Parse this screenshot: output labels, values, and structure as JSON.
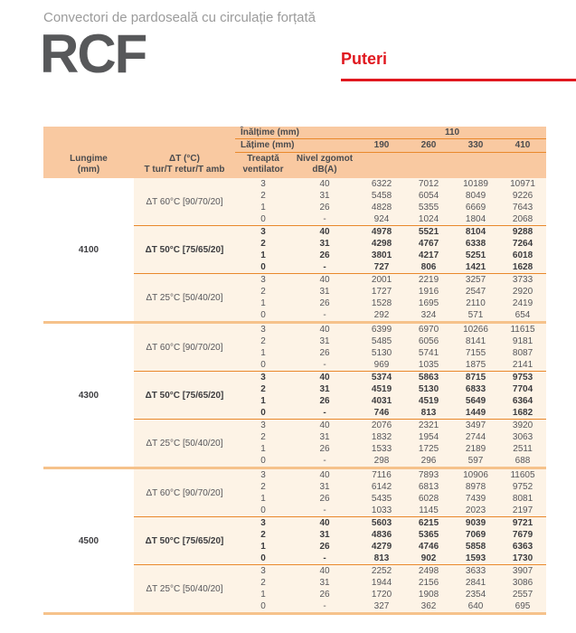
{
  "header": {
    "subtitle": "Convectori de pardoseală cu circulație forțată",
    "product": "RCF",
    "section": "Puteri",
    "accent_color": "#e0181f"
  },
  "table": {
    "height_label": "Înălțime (mm)",
    "height_value": "110",
    "width_label": "Lățime (mm)",
    "widths": [
      "190",
      "260",
      "330",
      "410"
    ],
    "col_headers": {
      "lungime": [
        "Lungime",
        "(mm)"
      ],
      "delta_t": [
        "ΔT (°C)",
        "T tur/T retur/T amb"
      ],
      "treapta": [
        "Treaptă",
        "ventilator"
      ],
      "nivel": [
        "Nivel zgomot",
        "dB(A)"
      ]
    },
    "colors": {
      "header_bg": "#f9c9a1",
      "body_bg": "#fdf3e6",
      "separator_orange": "#e9882b",
      "separator_group": "#f6c28b"
    },
    "groups": [
      {
        "length": "4100",
        "sections": [
          {
            "label": "ΔT 60°C [90/70/20]",
            "bold": false,
            "rows": [
              [
                "3",
                "40",
                "6322",
                "7012",
                "10189",
                "10971"
              ],
              [
                "2",
                "31",
                "5458",
                "6054",
                "8049",
                "9226"
              ],
              [
                "1",
                "26",
                "4828",
                "5355",
                "6669",
                "7643"
              ],
              [
                "0",
                "-",
                "924",
                "1024",
                "1804",
                "2068"
              ]
            ]
          },
          {
            "label": "ΔT 50°C [75/65/20]",
            "bold": true,
            "rows": [
              [
                "3",
                "40",
                "4978",
                "5521",
                "8104",
                "9288"
              ],
              [
                "2",
                "31",
                "4298",
                "4767",
                "6338",
                "7264"
              ],
              [
                "1",
                "26",
                "3801",
                "4217",
                "5251",
                "6018"
              ],
              [
                "0",
                "-",
                "727",
                "806",
                "1421",
                "1628"
              ]
            ]
          },
          {
            "label": "ΔT 25°C [50/40/20]",
            "bold": false,
            "rows": [
              [
                "3",
                "40",
                "2001",
                "2219",
                "3257",
                "3733"
              ],
              [
                "2",
                "31",
                "1727",
                "1916",
                "2547",
                "2920"
              ],
              [
                "1",
                "26",
                "1528",
                "1695",
                "2110",
                "2419"
              ],
              [
                "0",
                "-",
                "292",
                "324",
                "571",
                "654"
              ]
            ]
          }
        ]
      },
      {
        "length": "4300",
        "sections": [
          {
            "label": "ΔT 60°C [90/70/20]",
            "bold": false,
            "rows": [
              [
                "3",
                "40",
                "6399",
                "6970",
                "10266",
                "11615"
              ],
              [
                "2",
                "31",
                "5485",
                "6056",
                "8141",
                "9181"
              ],
              [
                "1",
                "26",
                "5130",
                "5741",
                "7155",
                "8087"
              ],
              [
                "0",
                "-",
                "969",
                "1035",
                "1875",
                "2141"
              ]
            ]
          },
          {
            "label": "ΔT 50°C [75/65/20]",
            "bold": true,
            "rows": [
              [
                "3",
                "40",
                "5374",
                "5863",
                "8715",
                "9753"
              ],
              [
                "2",
                "31",
                "4519",
                "5130",
                "6833",
                "7704"
              ],
              [
                "1",
                "26",
                "4031",
                "4519",
                "5649",
                "6364"
              ],
              [
                "0",
                "-",
                "746",
                "813",
                "1449",
                "1682"
              ]
            ]
          },
          {
            "label": "ΔT 25°C [50/40/20]",
            "bold": false,
            "rows": [
              [
                "3",
                "40",
                "2076",
                "2321",
                "3497",
                "3920"
              ],
              [
                "2",
                "31",
                "1832",
                "1954",
                "2744",
                "3063"
              ],
              [
                "1",
                "26",
                "1533",
                "1725",
                "2189",
                "2511"
              ],
              [
                "0",
                "-",
                "298",
                "296",
                "597",
                "688"
              ]
            ]
          }
        ]
      },
      {
        "length": "4500",
        "sections": [
          {
            "label": "ΔT 60°C [90/70/20]",
            "bold": false,
            "rows": [
              [
                "3",
                "40",
                "7116",
                "7893",
                "10906",
                "11605"
              ],
              [
                "2",
                "31",
                "6142",
                "6813",
                "8978",
                "9752"
              ],
              [
                "1",
                "26",
                "5435",
                "6028",
                "7439",
                "8081"
              ],
              [
                "0",
                "-",
                "1033",
                "1145",
                "2023",
                "2197"
              ]
            ]
          },
          {
            "label": "ΔT 50°C [75/65/20]",
            "bold": true,
            "rows": [
              [
                "3",
                "40",
                "5603",
                "6215",
                "9039",
                "9721"
              ],
              [
                "2",
                "31",
                "4836",
                "5365",
                "7069",
                "7679"
              ],
              [
                "1",
                "26",
                "4279",
                "4746",
                "5858",
                "6363"
              ],
              [
                "0",
                "-",
                "813",
                "902",
                "1593",
                "1730"
              ]
            ]
          },
          {
            "label": "ΔT 25°C [50/40/20]",
            "bold": false,
            "rows": [
              [
                "3",
                "40",
                "2252",
                "2498",
                "3633",
                "3907"
              ],
              [
                "2",
                "31",
                "1944",
                "2156",
                "2841",
                "3086"
              ],
              [
                "1",
                "26",
                "1720",
                "1908",
                "2354",
                "2557"
              ],
              [
                "0",
                "-",
                "327",
                "362",
                "640",
                "695"
              ]
            ]
          }
        ]
      }
    ]
  }
}
